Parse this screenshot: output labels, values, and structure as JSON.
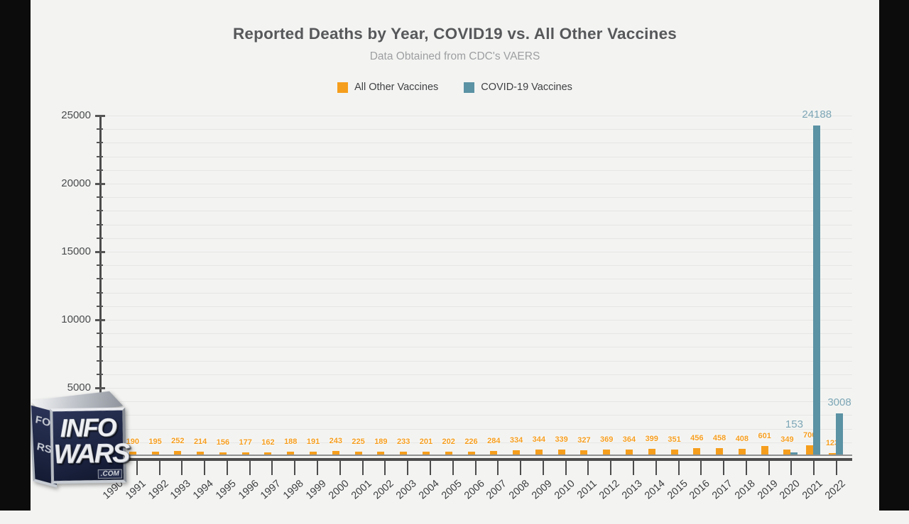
{
  "page": {
    "background": "#f3f4f2",
    "letterbox_color": "#0c0c0c"
  },
  "header": {
    "title": "Reported Deaths by Year, COVID19 vs. All Other Vaccines",
    "subtitle": "Data Obtained from CDC's VAERS"
  },
  "legend": {
    "items": [
      {
        "label": "All Other Vaccines",
        "color": "#f59e1d"
      },
      {
        "label": "COVID-19 Vaccines",
        "color": "#5b92a4"
      }
    ]
  },
  "watermark": {
    "name": "infowars-logo",
    "line1": "INFO",
    "line2": "WARS",
    "suffix": ".COM",
    "side_line1": "FO",
    "side_line2": "RS"
  },
  "chart_data": {
    "type": "bar",
    "title": "Reported Deaths by Year, COVID19 vs. All Other Vaccines",
    "subtitle": "Data Obtained from CDC's VAERS",
    "xlabel": "",
    "ylabel": "",
    "ylim": [
      0,
      25000
    ],
    "ytick_major_interval": 5000,
    "ytick_minor_interval": 1000,
    "ytick_major_labels": [
      "5000",
      "10000",
      "15000",
      "20000",
      "25000"
    ],
    "grid": true,
    "legend_position": "top-center",
    "categories": [
      1990,
      1991,
      1992,
      1993,
      1994,
      1995,
      1996,
      1997,
      1998,
      1999,
      2000,
      2001,
      2002,
      2003,
      2004,
      2005,
      2006,
      2007,
      2008,
      2009,
      2010,
      2011,
      2012,
      2013,
      2014,
      2015,
      2016,
      2017,
      2018,
      2019,
      2020,
      2021,
      2022
    ],
    "series": [
      {
        "name": "All Other Vaccines",
        "color": "#f59e1d",
        "label_color": "#f59d1e",
        "values": [
          null,
          190,
          195,
          252,
          214,
          156,
          177,
          162,
          188,
          191,
          243,
          225,
          189,
          233,
          201,
          202,
          226,
          284,
          334,
          344,
          339,
          327,
          369,
          364,
          399,
          351,
          456,
          458,
          408,
          601,
          349,
          700,
          123
        ]
      },
      {
        "name": "COVID-19 Vaccines",
        "color": "#5b92a4",
        "label_color": "#7da6b6",
        "values": [
          null,
          0,
          0,
          0,
          0,
          0,
          0,
          0,
          0,
          0,
          0,
          0,
          0,
          0,
          0,
          0,
          0,
          0,
          0,
          0,
          0,
          0,
          0,
          0,
          0,
          0,
          0,
          0,
          0,
          0,
          153,
          24188,
          3008
        ],
        "label_extra_offset": {
          "2020": -24
        }
      }
    ],
    "notes": "1990 bar and value label obscured by InfoWars logo overlay"
  }
}
